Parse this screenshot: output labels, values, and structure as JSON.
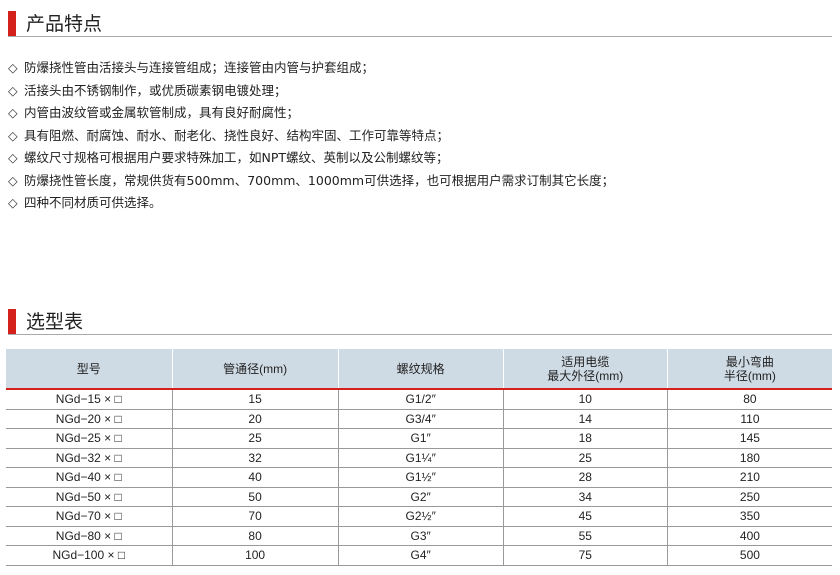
{
  "section1": {
    "title": "产品特点",
    "bullet": "◇",
    "items": [
      "防爆挠性管由活接头与连接管组成；连接管由内管与护套组成；",
      "活接头由不锈钢制作，或优质碳素钢电镀处理；",
      "内管由波纹管或金属软管制成，具有良好耐腐性；",
      "具有阻燃、耐腐蚀、耐水、耐老化、挠性良好、结构牢固、工作可靠等特点；",
      "螺纹尺寸规格可根据用户要求特殊加工，如NPT螺纹、英制以及公制螺纹等；",
      "防爆挠性管长度，常规供货有500mm、700mm、1000mm可供选择，也可根据用户需求订制其它长度；",
      "四种不同材质可供选择。"
    ]
  },
  "section2": {
    "title": "选型表"
  },
  "table": {
    "headers": [
      [
        "型号"
      ],
      [
        "管通径(mm)"
      ],
      [
        "螺纹规格"
      ],
      [
        "适用电缆",
        "最大外径(mm)"
      ],
      [
        "最小弯曲",
        "半径(mm)"
      ]
    ],
    "rows": [
      [
        "NGd−15 × □",
        "15",
        "G1/2″",
        "10",
        "80"
      ],
      [
        "NGd−20 × □",
        "20",
        "G3/4″",
        "14",
        "110"
      ],
      [
        "NGd−25 × □",
        "25",
        "G1″",
        "18",
        "145"
      ],
      [
        "NGd−32 × □",
        "32",
        "G1¼″",
        "25",
        "180"
      ],
      [
        "NGd−40 × □",
        "40",
        "G1½″",
        "28",
        "210"
      ],
      [
        "NGd−50 × □",
        "50",
        "G2″",
        "34",
        "250"
      ],
      [
        "NGd−70 × □",
        "70",
        "G2½″",
        "45",
        "350"
      ],
      [
        "NGd−80 × □",
        "80",
        "G3″",
        "55",
        "400"
      ],
      [
        "NGd−100 × □",
        "100",
        "G4″",
        "75",
        "500"
      ]
    ]
  },
  "colors": {
    "accent": "#d4211b",
    "table_header_bg": "#cfdbe4"
  }
}
